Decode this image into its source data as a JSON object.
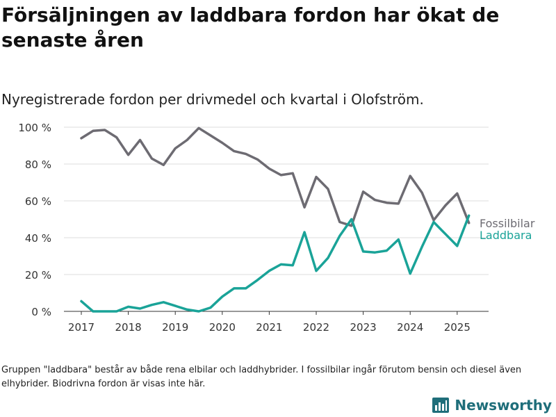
{
  "title": "Försäljningen av laddbara fordon har ökat de senaste åren",
  "subtitle": "Nyregistrerade fordon per drivmedel och kvartal i Olofström.",
  "note": "Gruppen \"laddbara\" består av både rena elbilar och laddhybrider. I fossilbilar ingår förutom bensin och diesel även elhybrider. Biodrivna fordon är visas inte här.",
  "brand": {
    "name": "Newsworthy",
    "icon": "newsworthy-logo-icon",
    "color": "#1f6e7a"
  },
  "chart_data": {
    "type": "line",
    "x_start_label": "2017 Q1",
    "xticks": [
      "2017",
      "2018",
      "2019",
      "2020",
      "2021",
      "2022",
      "2023",
      "2024",
      "2025"
    ],
    "yticks": [
      "0 %",
      "20 %",
      "40 %",
      "60 %",
      "80 %",
      "100 %"
    ],
    "ylim": [
      0,
      100
    ],
    "grid": true,
    "legend_placement": "right, at line ends",
    "series": [
      {
        "name": "Fossilbilar",
        "color": "#6d6b72",
        "values": [
          94,
          98,
          98.5,
          94.5,
          85,
          93,
          83,
          79.5,
          88.5,
          93,
          99.5,
          95.5,
          91.5,
          87,
          85.5,
          82.5,
          77.5,
          74,
          75,
          56.5,
          73,
          66.5,
          48.5,
          46.5,
          65,
          60.5,
          59,
          58.5,
          73.5,
          64.5,
          49.5,
          57.5,
          64,
          48
        ]
      },
      {
        "name": "Laddbara",
        "color": "#1aa398",
        "values": [
          5.5,
          0,
          0,
          0,
          2.5,
          1.5,
          3.5,
          5,
          3,
          1,
          0,
          2,
          8,
          12.5,
          12.5,
          17,
          22,
          25.5,
          25,
          43,
          22,
          29,
          41,
          50,
          32.5,
          32,
          33,
          39,
          20.5,
          35,
          48.5,
          42,
          35.5,
          52
        ]
      }
    ]
  }
}
